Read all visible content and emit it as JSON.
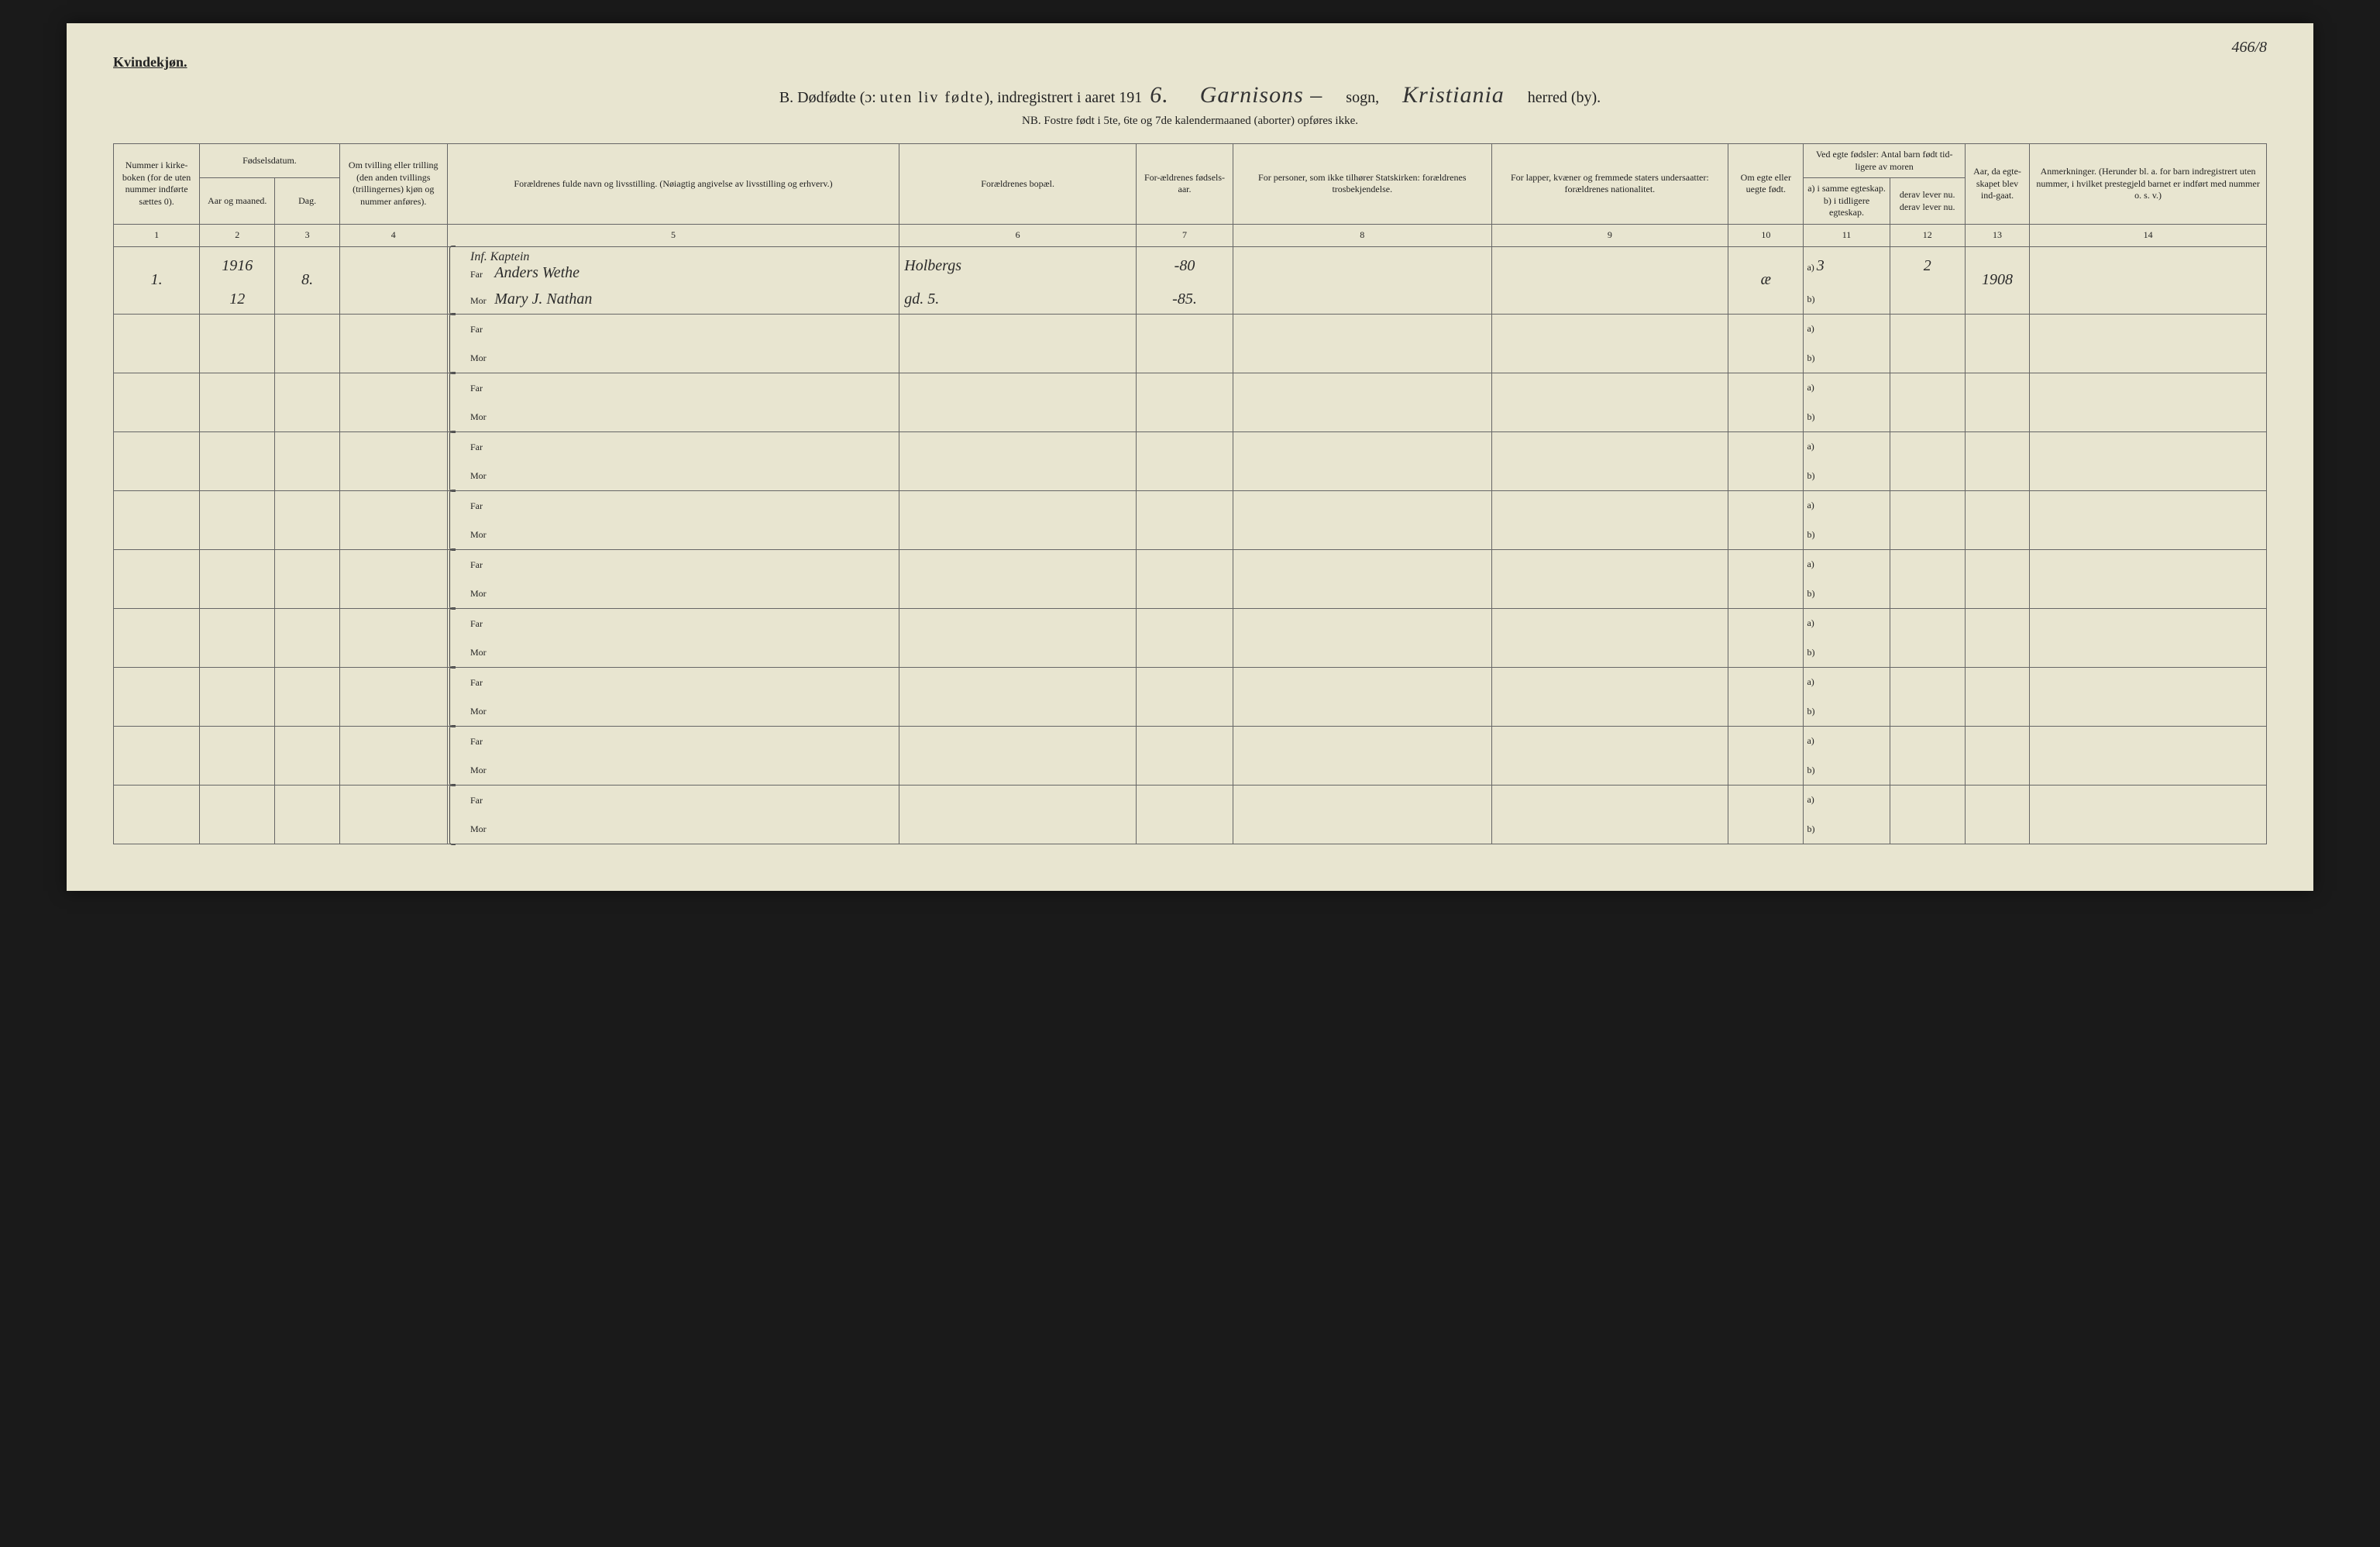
{
  "corner_number": "466/8",
  "header_label": "Kvindekjøn.",
  "title": {
    "prefix": "B.  Dødfødte (ɔ:",
    "spaced": "uten liv fødte",
    "mid": "), indregistrert i aaret 191",
    "year_suffix": "6.",
    "sogn_value": "Garnisons –",
    "sogn_label": "sogn,",
    "herred_value": "Kristiania",
    "herred_label": "herred (by)."
  },
  "subtitle": "NB.  Fostre født i 5te, 6te og 7de kalendermaaned (aborter) opføres ikke.",
  "columns": {
    "c1": "Nummer i kirke-boken (for de uten nummer indførte sættes 0).",
    "c2_group": "Fødselsdatum.",
    "c2": "Aar og maaned.",
    "c3": "Dag.",
    "c4": "Om tvilling eller trilling (den anden tvillings (trillingernes) kjøn og nummer anføres).",
    "c5": "Forældrenes fulde navn og livsstilling.\n(Nøiagtig angivelse av livsstilling og erhverv.)",
    "c6": "Forældrenes bopæl.",
    "c7": "For-ældrenes fødsels-aar.",
    "c8": "For personer, som ikke tilhører Statskirken: forældrenes trosbekjendelse.",
    "c9": "For lapper, kvæner og fremmede staters undersaatter: forældrenes nationalitet.",
    "c10": "Om egte eller uegte født.",
    "c11_12_group": "Ved egte fødsler: Antal barn født tid-ligere av moren",
    "c11": "a) i samme egteskap.\nb) i tidligere egteskap.",
    "c12": "derav lever nu.\nderav lever nu.",
    "c13": "Aar, da egte-skapet blev ind-gaat.",
    "c14": "Anmerkninger.\n(Herunder bl. a. for barn indregistrert uten nummer, i hvilket prestegjeld barnet er indført med nummer o. s. v.)"
  },
  "col_nums": [
    "1",
    "2",
    "3",
    "4",
    "5",
    "6",
    "7",
    "8",
    "9",
    "10",
    "11",
    "12",
    "13",
    "14"
  ],
  "labels": {
    "far": "Far",
    "mor": "Mor",
    "a": "a)",
    "b": "b)"
  },
  "entry": {
    "num": "1.",
    "year": "1916",
    "month": "12",
    "day": "8.",
    "profession": "Inf. Kaptein",
    "far_name": "Anders Wethe",
    "mor_name": "Mary J. Nathan",
    "address1": "Holbergs",
    "address2": "gd. 5.",
    "far_birth": "-80",
    "mor_birth": "-85.",
    "egte": "æ",
    "a_val": "3",
    "a_lever": "2",
    "year_married": "1908"
  }
}
